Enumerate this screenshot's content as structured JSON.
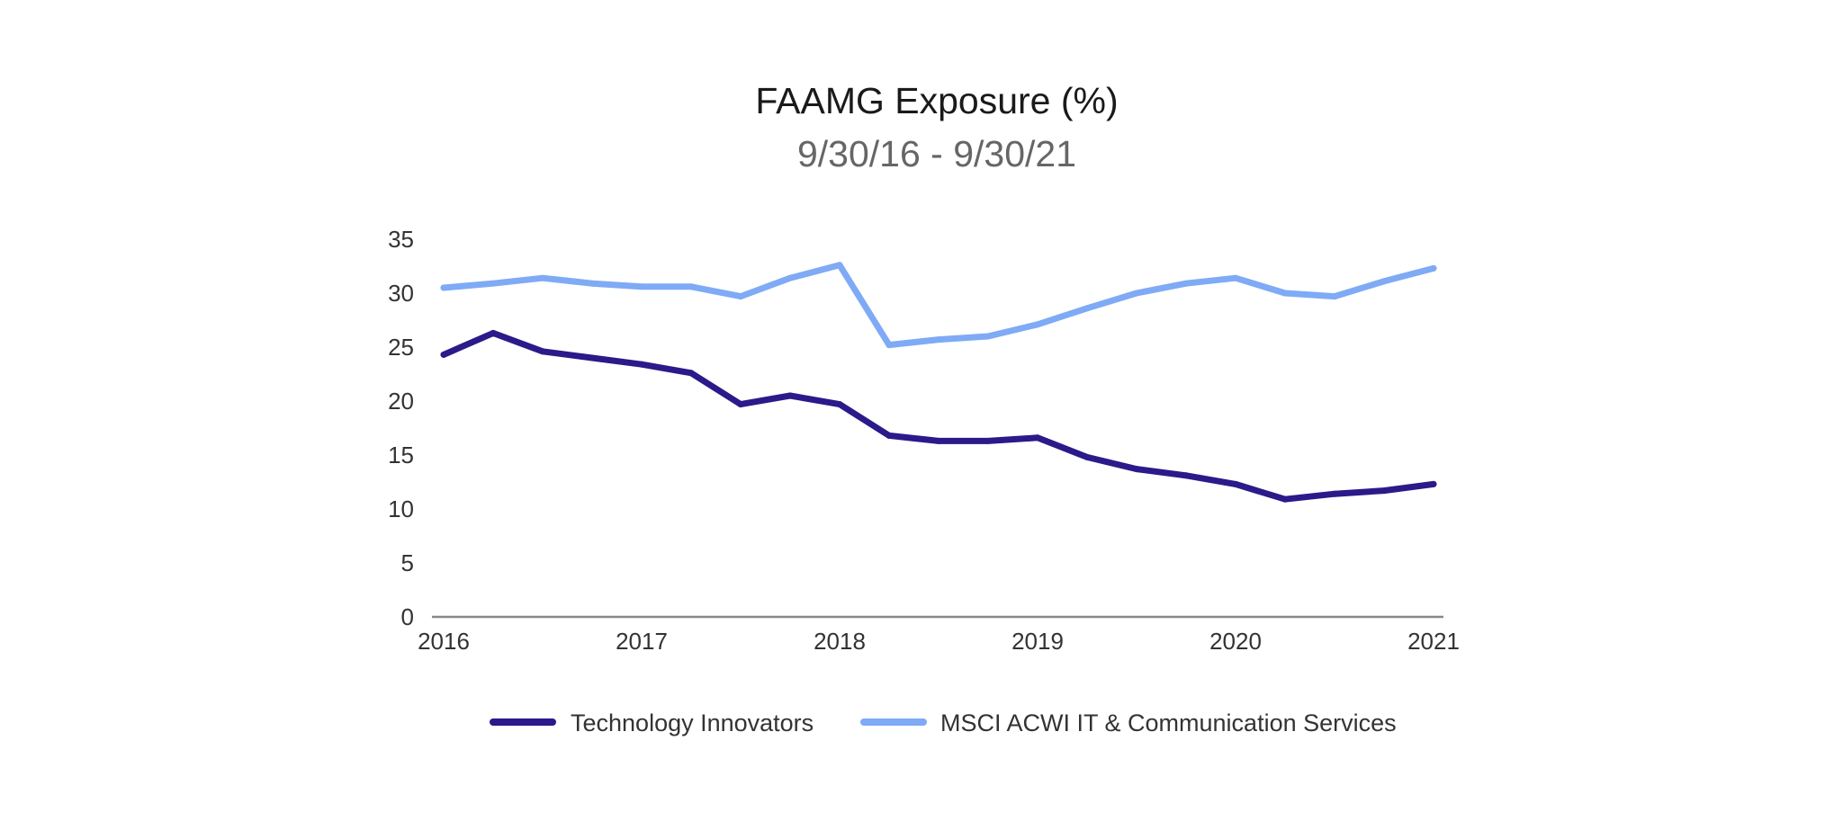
{
  "chart_data": {
    "type": "line",
    "title": "FAAMG Exposure (%)",
    "subtitle": "9/30/16 - 9/30/21",
    "xlabel": "",
    "ylabel": "",
    "x": [
      2016.0,
      2016.25,
      2016.5,
      2016.75,
      2017.0,
      2017.25,
      2017.5,
      2017.75,
      2018.0,
      2018.25,
      2018.5,
      2018.75,
      2019.0,
      2019.25,
      2019.5,
      2019.75,
      2020.0,
      2020.25,
      2020.5,
      2020.75,
      2021.0
    ],
    "xlim": [
      2016,
      2021
    ],
    "x_ticks": [
      "2016",
      "2017",
      "2018",
      "2019",
      "2020",
      "2021"
    ],
    "ylim": [
      0,
      35
    ],
    "y_ticks": [
      "0",
      "5",
      "10",
      "15",
      "20",
      "25",
      "30",
      "35"
    ],
    "grid": false,
    "legend_position": "bottom",
    "series": [
      {
        "name": "Technology Innovators",
        "color": "#2a1a8a",
        "values": [
          24.3,
          26.3,
          24.6,
          24.0,
          23.4,
          22.6,
          19.7,
          20.5,
          19.7,
          16.8,
          16.3,
          16.3,
          16.6,
          14.8,
          13.7,
          13.1,
          12.3,
          10.9,
          11.4,
          11.7,
          12.3
        ]
      },
      {
        "name": "MSCI ACWI IT & Communication Services",
        "color": "#7faaf5",
        "values": [
          30.5,
          30.9,
          31.4,
          30.9,
          30.6,
          30.6,
          29.7,
          31.4,
          32.6,
          25.2,
          25.7,
          26.0,
          27.1,
          28.6,
          30.0,
          30.9,
          31.4,
          30.0,
          29.7,
          31.1,
          32.3
        ]
      }
    ]
  }
}
